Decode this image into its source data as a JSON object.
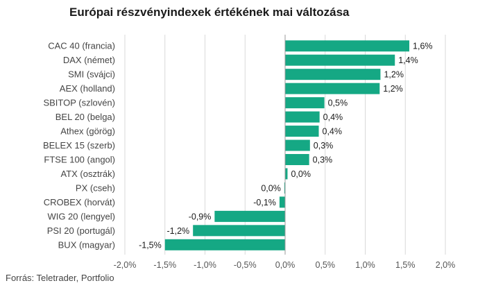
{
  "chart_data": {
    "type": "bar",
    "orientation": "horizontal",
    "title": "Európai részvényindexek értékének mai változása",
    "source": "Forrás: Teletrader, Portfolio",
    "categories": [
      "CAC 40 (francia)",
      "DAX (német)",
      "SMI (svájci)",
      "AEX (holland)",
      "SBITOP (szlovén)",
      "BEL 20 (belga)",
      "Athex (görög)",
      "BELEX 15 (szerb)",
      "FTSE 100 (angol)",
      "ATX (osztrák)",
      "PX (cseh)",
      "CROBEX (horvát)",
      "WIG 20 (lengyel)",
      "PSI 20 (portugál)",
      "BUX (magyar)"
    ],
    "values": [
      1.55,
      1.37,
      1.19,
      1.18,
      0.49,
      0.43,
      0.42,
      0.31,
      0.3,
      0.03,
      -0.01,
      -0.07,
      -0.88,
      -1.15,
      -1.5
    ],
    "value_labels": [
      "1,6%",
      "1,4%",
      "1,2%",
      "1,2%",
      "0,5%",
      "0,4%",
      "0,4%",
      "0,3%",
      "0,3%",
      "0,0%",
      "0,0%",
      "-0,1%",
      "-0,9%",
      "-1,2%",
      "-1,5%"
    ],
    "xlim": [
      -2.0,
      2.0
    ],
    "xticks": [
      -2.0,
      -1.5,
      -1.0,
      -0.5,
      0.0,
      0.5,
      1.0,
      1.5,
      2.0
    ],
    "xtick_labels": [
      "-2,0%",
      "-1,5%",
      "-1,0%",
      "-0,5%",
      "0,0%",
      "0,5%",
      "1,0%",
      "1,5%",
      "2,0%"
    ],
    "xlabel": "",
    "ylabel": "",
    "grid": "vertical",
    "legend": "none",
    "bar_color": "#15a884",
    "grid_color": "#d9d9d9",
    "axis_color": "#999999"
  }
}
